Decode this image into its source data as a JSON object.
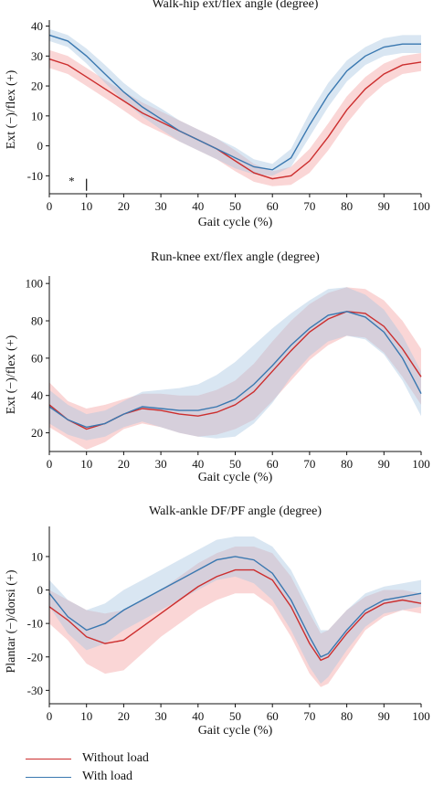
{
  "colors": {
    "without_load": "#cc2e2e",
    "without_load_band": "#f4a3a3",
    "with_load": "#3a78b0",
    "with_load_band": "#aac8e3",
    "axis": "#111111"
  },
  "chart_data": [
    {
      "type": "line",
      "title": "Walk-hip ext/flex angle (degree)",
      "xlabel": "Gait cycle (%)",
      "ylabel": "Ext (−)/flex (+)",
      "xlim": [
        0,
        100
      ],
      "ylim": [
        -16,
        42
      ],
      "xticks": [
        0,
        10,
        20,
        30,
        40,
        50,
        60,
        70,
        80,
        90,
        100
      ],
      "yticks": [
        -10,
        0,
        10,
        20,
        30,
        40
      ],
      "x": [
        0,
        5,
        10,
        15,
        20,
        25,
        30,
        35,
        40,
        45,
        50,
        55,
        60,
        65,
        70,
        75,
        80,
        85,
        90,
        95,
        100
      ],
      "series": [
        {
          "name": "Without load",
          "mean": [
            29,
            27,
            23,
            19,
            15,
            11,
            8,
            5,
            2,
            -1,
            -5,
            -9,
            -11,
            -10,
            -5,
            3,
            12,
            19,
            24,
            27,
            28
          ],
          "sd": [
            3,
            3,
            3,
            3,
            3.2,
            3.5,
            3.5,
            3.5,
            3.5,
            3.5,
            3.5,
            3,
            2.5,
            3,
            4,
            4.5,
            4.5,
            4,
            3.5,
            3,
            3
          ]
        },
        {
          "name": "With load",
          "mean": [
            37,
            35,
            30,
            24,
            18,
            13,
            9,
            5,
            2,
            -1,
            -4,
            -7,
            -8,
            -4,
            7,
            17,
            25,
            30,
            33,
            34,
            34
          ],
          "sd": [
            2,
            2,
            2.5,
            3,
            3,
            3.2,
            3.5,
            3.5,
            3.5,
            3.5,
            3.5,
            2.5,
            2,
            3,
            4,
            4,
            3.5,
            3,
            3,
            3,
            3
          ]
        }
      ],
      "annotation": {
        "star": "*",
        "star_x": 6,
        "star_y": -10,
        "bar_x": 10,
        "bar_from": -15,
        "bar_to": -11
      }
    },
    {
      "type": "line",
      "title": "Run-knee ext/flex angle (degree)",
      "xlabel": "Gait cycle (%)",
      "ylabel": "Ext (−)/flex (+)",
      "xlim": [
        0,
        100
      ],
      "ylim": [
        10,
        104
      ],
      "xticks": [
        0,
        10,
        20,
        30,
        40,
        50,
        60,
        70,
        80,
        90,
        100
      ],
      "yticks": [
        20,
        40,
        60,
        80,
        100
      ],
      "x": [
        0,
        5,
        10,
        15,
        20,
        25,
        30,
        35,
        40,
        45,
        50,
        55,
        60,
        65,
        70,
        75,
        80,
        85,
        90,
        95,
        100
      ],
      "series": [
        {
          "name": "Without load",
          "mean": [
            35,
            27,
            22,
            25,
            30,
            33,
            32,
            30,
            29,
            31,
            35,
            42,
            53,
            64,
            74,
            81,
            85,
            84,
            77,
            65,
            50
          ],
          "sd": [
            12,
            10,
            11,
            10,
            8,
            8,
            9,
            10,
            11,
            12,
            13,
            15,
            16,
            16,
            15,
            14,
            13,
            13,
            14,
            15,
            15
          ]
        },
        {
          "name": "With load",
          "mean": [
            34,
            27,
            23,
            25,
            30,
            34,
            33,
            32,
            32,
            34,
            38,
            46,
            56,
            67,
            76,
            83,
            85,
            82,
            74,
            60,
            41
          ],
          "sd": [
            9,
            8,
            7,
            7,
            7,
            8,
            10,
            12,
            14,
            17,
            20,
            21,
            20,
            17,
            15,
            14,
            13,
            12,
            12,
            12,
            12
          ]
        }
      ]
    },
    {
      "type": "line",
      "title": "Walk-ankle DF/PF angle (degree)",
      "xlabel": "Gait cycle (%)",
      "ylabel": "Plantar (−)/dorsi (+)",
      "xlim": [
        0,
        100
      ],
      "ylim": [
        -34,
        19
      ],
      "xticks": [
        0,
        10,
        20,
        30,
        40,
        50,
        60,
        70,
        80,
        90,
        100
      ],
      "yticks": [
        -30,
        -20,
        -10,
        0,
        10
      ],
      "x": [
        0,
        5,
        10,
        15,
        20,
        25,
        30,
        35,
        40,
        45,
        50,
        55,
        60,
        65,
        70,
        73,
        75,
        80,
        85,
        90,
        95,
        100
      ],
      "series": [
        {
          "name": "Without load",
          "mean": [
            -5,
            -9,
            -14,
            -16,
            -15,
            -11,
            -7,
            -3,
            1,
            4,
            6,
            6,
            3,
            -5,
            -16,
            -21,
            -20,
            -13,
            -7,
            -4,
            -3,
            -4
          ],
          "sd": [
            5,
            6,
            8,
            9,
            9,
            8,
            7,
            7,
            7,
            7,
            7,
            7,
            8,
            9,
            9,
            8,
            8,
            7,
            5,
            4,
            3,
            3
          ]
        },
        {
          "name": "With load",
          "mean": [
            -1,
            -8,
            -12,
            -10,
            -6,
            -3,
            0,
            3,
            6,
            9,
            10,
            9,
            5,
            -3,
            -14,
            -20,
            -19,
            -12,
            -6,
            -3,
            -2,
            -1
          ],
          "sd": [
            4,
            5,
            6,
            6,
            6,
            6,
            6,
            6,
            6,
            6,
            6,
            7,
            8,
            9,
            9,
            8,
            7,
            6,
            5,
            4,
            4,
            4
          ]
        }
      ]
    }
  ],
  "legend": {
    "items": [
      "Without load",
      "With load"
    ]
  }
}
